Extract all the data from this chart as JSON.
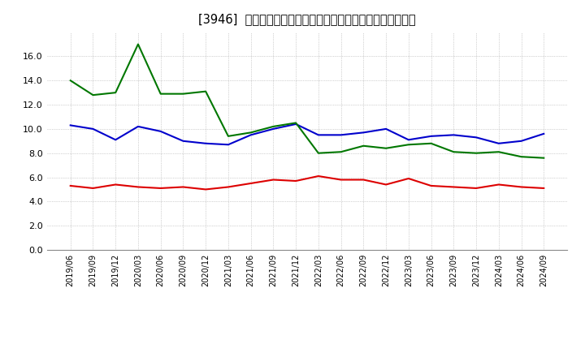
{
  "title": "[3946]  売上債権回転率、買入債務回転率、在庫回転率の推移",
  "x_labels": [
    "2019/06",
    "2019/09",
    "2019/12",
    "2020/03",
    "2020/06",
    "2020/09",
    "2020/12",
    "2021/03",
    "2021/06",
    "2021/09",
    "2021/12",
    "2022/03",
    "2022/06",
    "2022/09",
    "2022/12",
    "2023/03",
    "2023/06",
    "2023/09",
    "2023/12",
    "2024/03",
    "2024/06",
    "2024/09"
  ],
  "売上債権回転率": [
    5.3,
    5.1,
    5.4,
    5.2,
    5.1,
    5.2,
    5.0,
    5.2,
    5.5,
    5.8,
    5.7,
    6.1,
    5.8,
    5.8,
    5.4,
    5.9,
    5.3,
    5.2,
    5.1,
    5.4,
    5.2,
    5.1
  ],
  "買入債務回転率": [
    10.3,
    10.0,
    9.1,
    10.2,
    9.8,
    9.0,
    8.8,
    8.7,
    9.5,
    10.0,
    10.4,
    9.5,
    9.5,
    9.7,
    10.0,
    9.1,
    9.4,
    9.5,
    9.3,
    8.8,
    9.0,
    9.6
  ],
  "在庫回転率": [
    14.0,
    12.8,
    13.0,
    17.0,
    12.9,
    12.9,
    13.1,
    9.4,
    9.7,
    10.2,
    10.5,
    8.0,
    8.1,
    8.6,
    8.4,
    8.7,
    8.8,
    8.1,
    8.0,
    8.1,
    7.7,
    7.6
  ],
  "color_red": "#dd0000",
  "color_blue": "#0000cc",
  "color_green": "#007700",
  "bg_color": "#ffffff",
  "grid_color": "#aaaaaa",
  "ylim": [
    0.0,
    18.0
  ],
  "yticks": [
    0.0,
    2.0,
    4.0,
    6.0,
    8.0,
    10.0,
    12.0,
    14.0,
    16.0
  ],
  "legend_labels": [
    "売上債権回転率",
    "買入債務回転率",
    "在庫回転率"
  ]
}
